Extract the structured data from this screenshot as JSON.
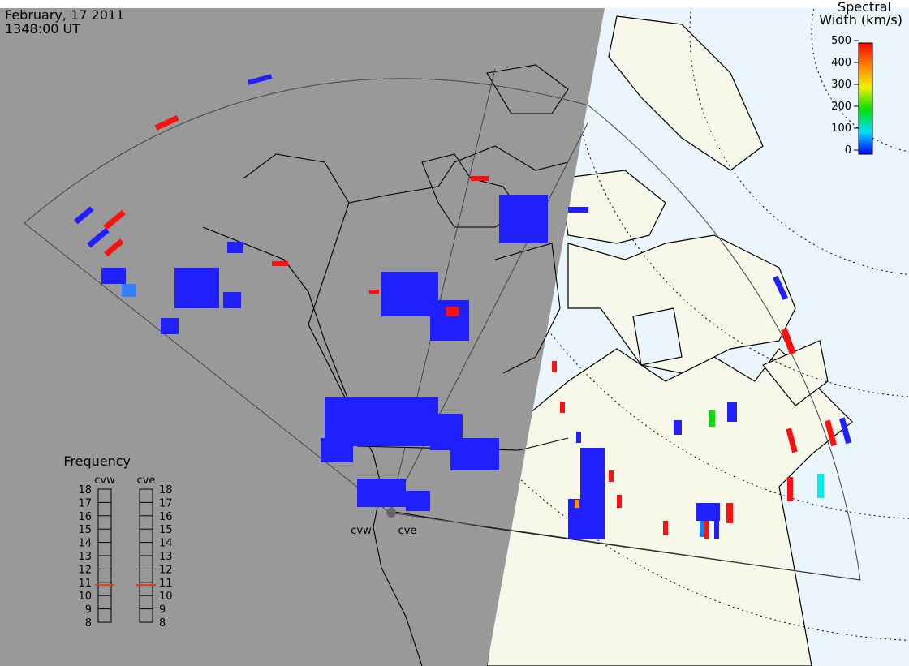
{
  "header": {
    "date": "February, 17 2011",
    "time": "1348:00 UT"
  },
  "colorbar": {
    "title_line1": "Spectral",
    "title_line2": "Width (km/s)",
    "ticks": [
      0,
      100,
      200,
      300,
      400,
      500
    ]
  },
  "frequency": {
    "title": "Frequency",
    "scale": [
      8,
      9,
      10,
      11,
      12,
      13,
      14,
      15,
      16,
      17,
      18
    ],
    "radars": [
      {
        "name": "cvw",
        "value": 10.8
      },
      {
        "name": "cve",
        "value": 10.8
      }
    ]
  },
  "sites": [
    "cvw",
    "cve"
  ]
}
